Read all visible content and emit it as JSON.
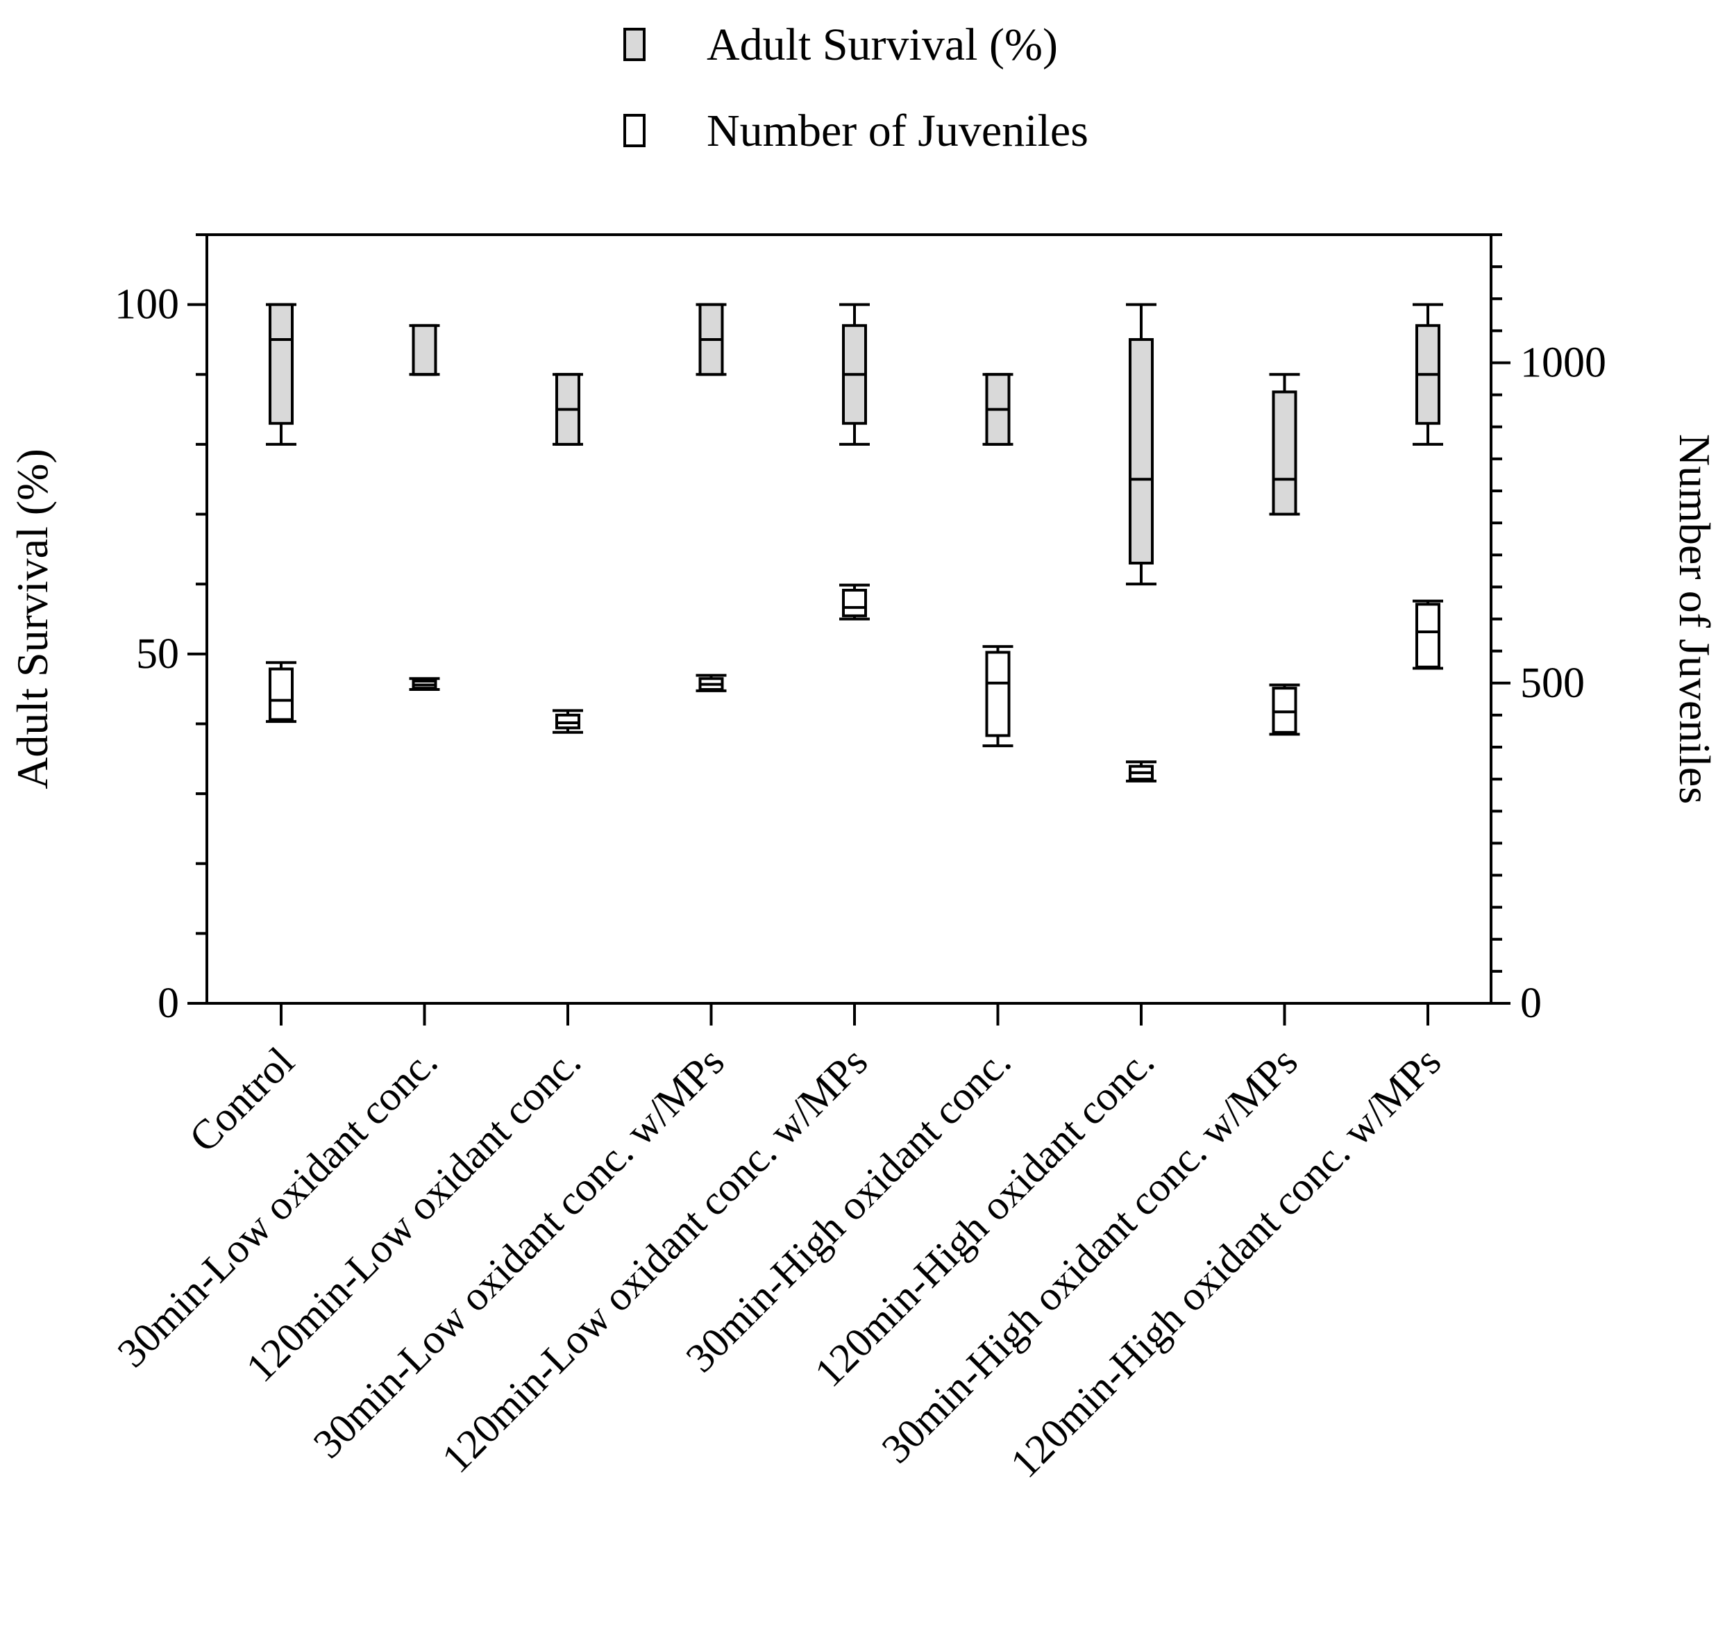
{
  "chart_data": {
    "type": "boxplot",
    "title": "",
    "legend": {
      "placement": "top-center",
      "entries": [
        {
          "name": "Adult Survival (%)",
          "fill": "#d9d9d9"
        },
        {
          "name": "Number of Juveniles",
          "fill": "#ffffff"
        }
      ]
    },
    "categories": [
      "Control",
      "30min-Low oxidant conc.",
      "120min-Low oxidant conc.",
      "30min-Low oxidant conc. w/MPs",
      "120min-Low oxidant conc. w/MPs",
      "30min-High oxidant conc.",
      "120min-High oxidant conc.",
      "30min-High oxidant conc. w/MPs",
      "120min-High oxidant conc. w/MPs"
    ],
    "left_axis": {
      "label": "Adult Survival (%)",
      "ylim": [
        0,
        110
      ],
      "ticks": [
        {
          "value": 0,
          "label": "0"
        },
        {
          "value": 50,
          "label": "50"
        },
        {
          "value": 100,
          "label": "100"
        }
      ]
    },
    "right_axis": {
      "label": "Number of Juveniles",
      "ylim": [
        0,
        1200
      ],
      "ticks": [
        {
          "value": 0,
          "label": "0"
        },
        {
          "value": 500,
          "label": "500"
        },
        {
          "value": 1000,
          "label": "1000"
        }
      ],
      "minor_tick_step": 50
    },
    "series": [
      {
        "name": "Adult Survival (%)",
        "axis": "left",
        "fill": "#d9d9d9",
        "boxes": [
          {
            "min": 80,
            "q1": 83,
            "median": 95,
            "q3": 100,
            "max": 100
          },
          {
            "min": 90,
            "q1": 90,
            "median": 90,
            "q3": 97,
            "max": 97
          },
          {
            "min": 80,
            "q1": 80,
            "median": 85,
            "q3": 90,
            "max": 90
          },
          {
            "min": 90,
            "q1": 90,
            "median": 95,
            "q3": 100,
            "max": 100
          },
          {
            "min": 80,
            "q1": 83,
            "median": 90,
            "q3": 97,
            "max": 100
          },
          {
            "min": 80,
            "q1": 80,
            "median": 85,
            "q3": 90,
            "max": 90
          },
          {
            "min": 60,
            "q1": 63,
            "median": 75,
            "q3": 95,
            "max": 100
          },
          {
            "min": 70,
            "q1": 70,
            "median": 75,
            "q3": 87.5,
            "max": 90
          },
          {
            "min": 80,
            "q1": 83,
            "median": 90,
            "q3": 97,
            "max": 100
          }
        ]
      },
      {
        "name": "Number of Juveniles",
        "axis": "right",
        "fill": "#ffffff",
        "boxes": [
          {
            "min": 440,
            "q1": 443,
            "median": 473,
            "q3": 522,
            "max": 532
          },
          {
            "min": 490,
            "q1": 492,
            "median": 497,
            "q3": 503,
            "max": 507
          },
          {
            "min": 423,
            "q1": 430,
            "median": 438,
            "q3": 450,
            "max": 457
          },
          {
            "min": 488,
            "q1": 490,
            "median": 498,
            "q3": 507,
            "max": 512
          },
          {
            "min": 600,
            "q1": 605,
            "median": 618,
            "q3": 645,
            "max": 653
          },
          {
            "min": 402,
            "q1": 418,
            "median": 500,
            "q3": 548,
            "max": 557
          },
          {
            "min": 347,
            "q1": 350,
            "median": 360,
            "q3": 370,
            "max": 377
          },
          {
            "min": 420,
            "q1": 423,
            "median": 455,
            "q3": 492,
            "max": 497
          },
          {
            "min": 523,
            "q1": 525,
            "median": 580,
            "q3": 623,
            "max": 628
          }
        ]
      }
    ]
  }
}
